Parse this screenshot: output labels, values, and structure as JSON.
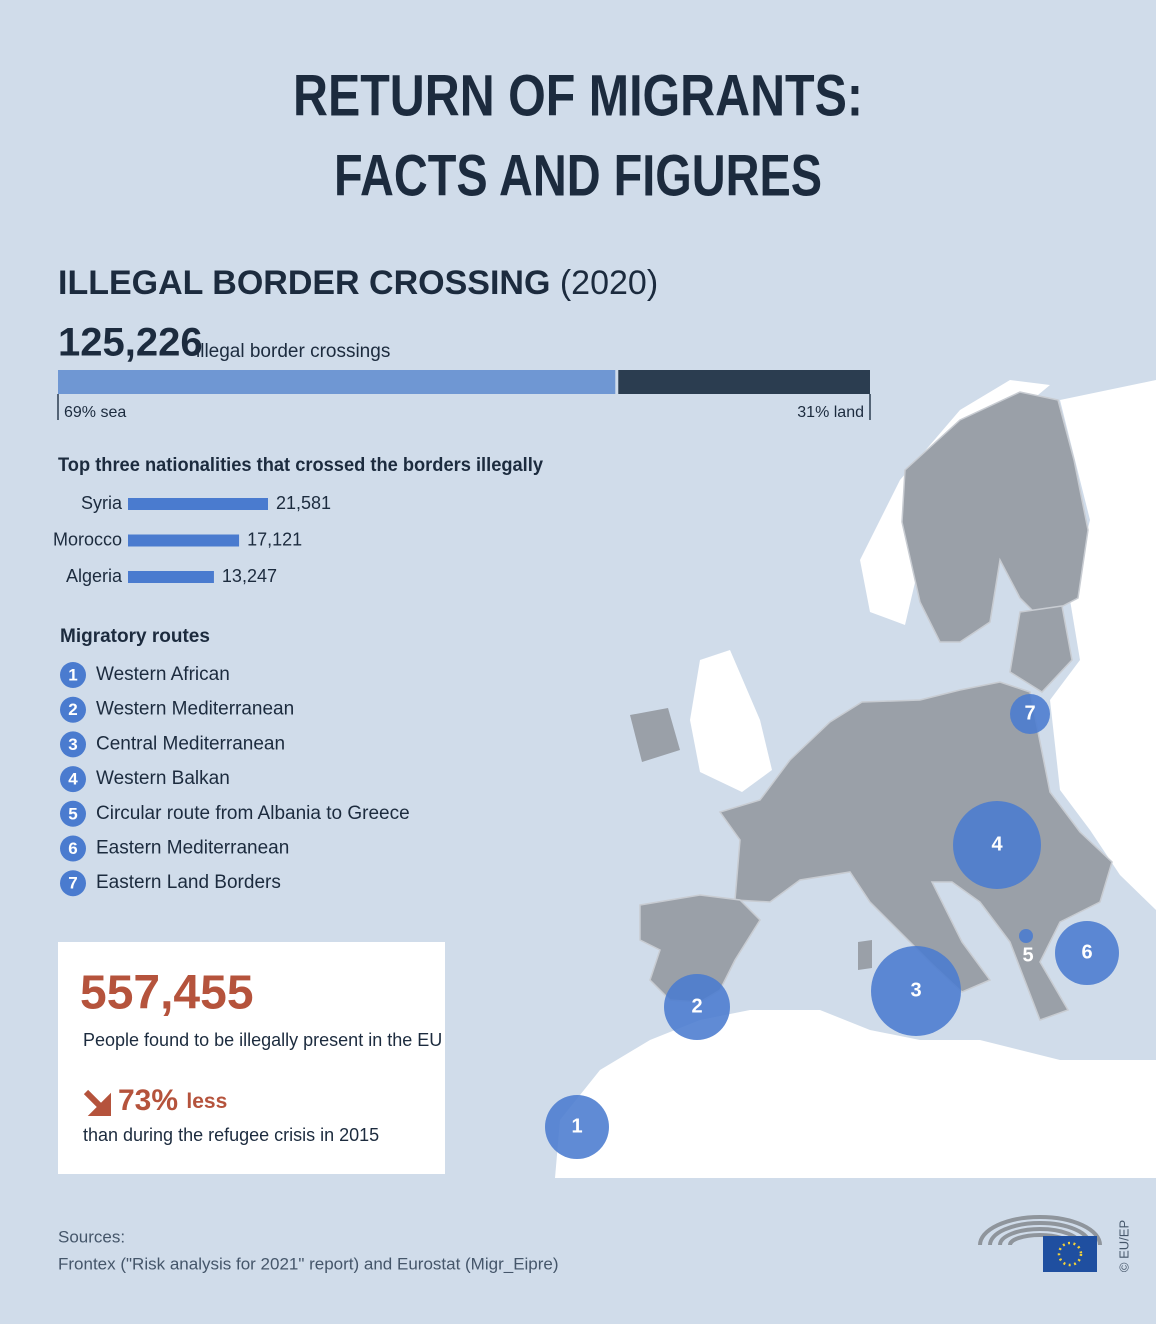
{
  "header": {
    "title_lines": [
      "RETURN OF MIGRANTS:",
      "FACTS AND FIGURES"
    ]
  },
  "section": {
    "title": "ILLEGAL BORDER CROSSING",
    "year": "(2020)",
    "total": "125,226",
    "total_label": "illegal border crossings",
    "nationalities_title": "Top three nationalities that crossed the borders illegally",
    "routes_title": "Migratory routes"
  },
  "chart_data": [
    {
      "type": "stacked-bar",
      "values": [
        69,
        31
      ],
      "value_labels": [
        "69% sea",
        "31% land"
      ],
      "colors": [
        "#6f97d3",
        "#2b3d50"
      ]
    },
    {
      "type": "bar",
      "categories": [
        "Syria",
        "Morocco",
        "Algeria"
      ],
      "values": [
        21581,
        17121,
        13247
      ],
      "value_labels": [
        "21,581",
        "17,121",
        "13,247"
      ],
      "color": "#4a7bcf"
    }
  ],
  "routes": [
    {
      "number": "1",
      "name": "Western African"
    },
    {
      "number": "2",
      "name": "Western Mediterranean"
    },
    {
      "number": "3",
      "name": "Central Mediterranean"
    },
    {
      "number": "4",
      "name": "Western Balkan"
    },
    {
      "number": "5",
      "name": "Circular route from Albania to Greece"
    },
    {
      "number": "6",
      "name": "Eastern Mediterranean"
    },
    {
      "number": "7",
      "name": "Eastern Land Borders"
    }
  ],
  "box": {
    "figure": "557,455",
    "figure_label": "People found to be illegally present in the EU",
    "change": "73%",
    "change_word": "less",
    "change_label": "than during the refugee crisis in 2015"
  },
  "sources": {
    "heading": "Sources:",
    "text": "Frontex (\"Risk analysis for 2021\" report) and Eurostat (Migr_Eipre)"
  },
  "credit": "© EU/EP"
}
